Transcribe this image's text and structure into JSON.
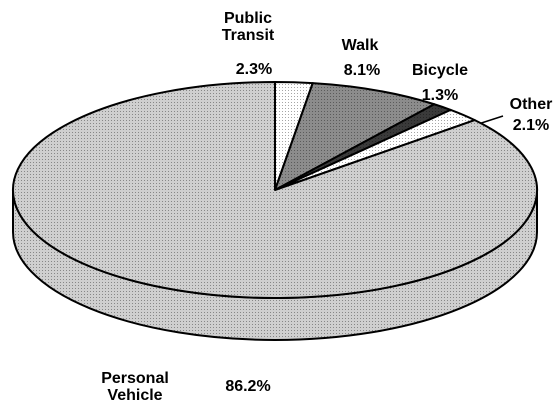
{
  "chart_data": {
    "type": "pie",
    "categories": [
      "Public Transit",
      "Walk",
      "Bicycle",
      "Other",
      "Personal Vehicle"
    ],
    "values": [
      2.3,
      8.1,
      1.3,
      2.1,
      86.2
    ],
    "value_labels": [
      "2.3%",
      "8.1%",
      "1.3%",
      "2.1%",
      "86.2%"
    ],
    "colors": [
      "#ffffff",
      "#8c8c8c",
      "#3a3a3a",
      "#ffffff",
      "#cfcfcf"
    ]
  }
}
